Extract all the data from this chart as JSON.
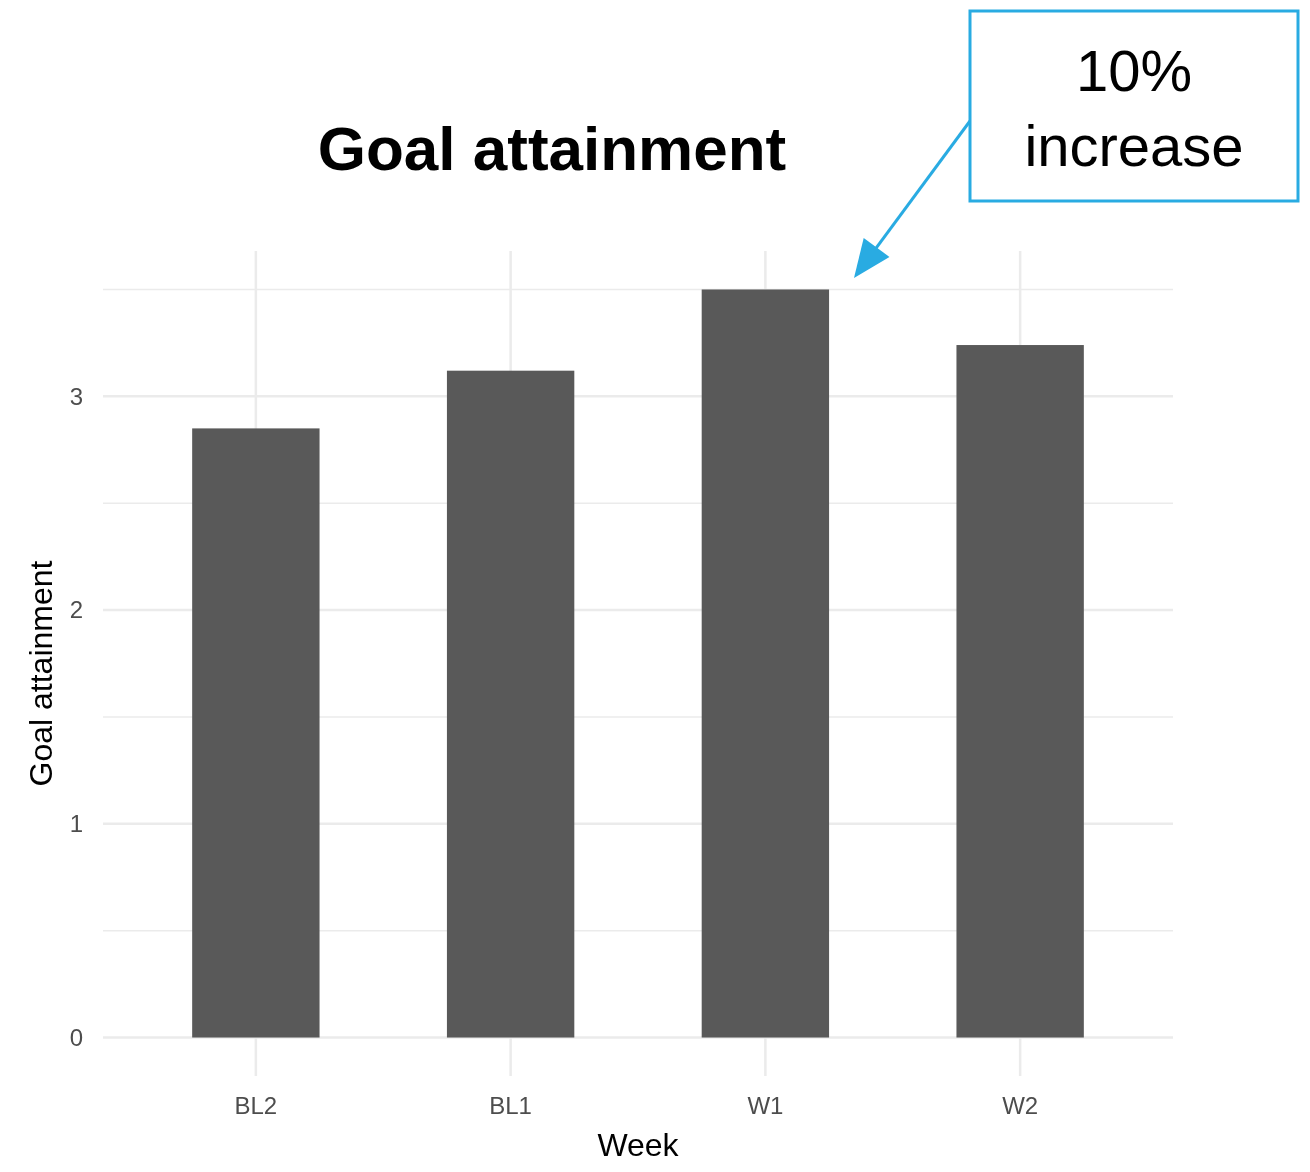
{
  "chart_data": {
    "type": "bar",
    "title": "Goal attainment",
    "xlabel": "Week",
    "ylabel": "Goal attainment",
    "categories": [
      "BL2",
      "BL1",
      "W1",
      "W2"
    ],
    "values": [
      2.85,
      3.12,
      3.5,
      3.24
    ],
    "color": "#595959",
    "ylim": [
      -0.18,
      3.68
    ],
    "yticks": [
      0,
      {
        "value": 0.5,
        "label": null
      },
      1,
      {
        "value": 1.5,
        "label": null
      },
      2,
      {
        "value": 2.5,
        "label": null
      },
      3,
      {
        "value": 3.5,
        "label": null
      }
    ],
    "grid": true,
    "annotations": [
      "10% increase"
    ]
  }
}
